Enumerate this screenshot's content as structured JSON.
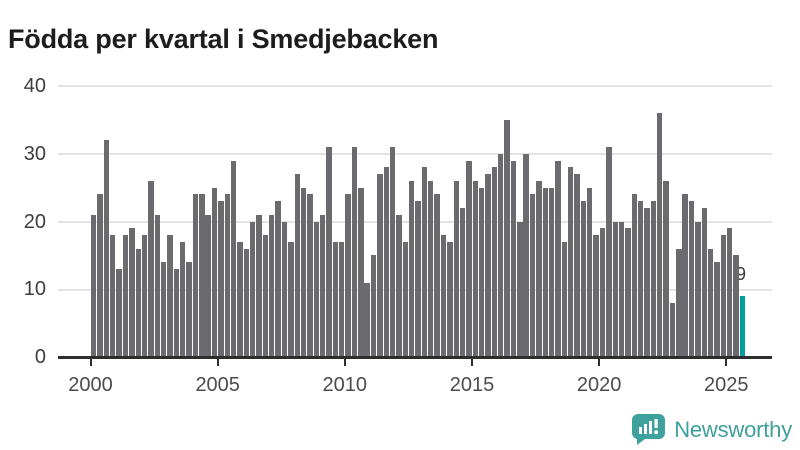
{
  "title": "Födda per kvartal i Smedjebacken",
  "chart_data": {
    "type": "bar",
    "title": "Födda per kvartal i Smedjebacken",
    "x_unit": "quarter",
    "start_quarter": "2000 Q1",
    "end_quarter": "2025 Q3",
    "values": [
      21,
      24,
      32,
      18,
      13,
      18,
      19,
      16,
      18,
      26,
      21,
      14,
      18,
      13,
      17,
      14,
      24,
      24,
      21,
      25,
      23,
      24,
      29,
      17,
      16,
      20,
      21,
      18,
      21,
      23,
      20,
      17,
      27,
      25,
      24,
      20,
      21,
      31,
      17,
      17,
      24,
      31,
      25,
      11,
      15,
      27,
      28,
      31,
      21,
      17,
      26,
      23,
      28,
      26,
      24,
      18,
      17,
      26,
      22,
      29,
      26,
      25,
      27,
      28,
      30,
      35,
      29,
      20,
      30,
      24,
      26,
      25,
      25,
      29,
      17,
      28,
      27,
      23,
      25,
      18,
      19,
      31,
      20,
      20,
      19,
      24,
      23,
      22,
      23,
      36,
      26,
      8,
      16,
      24,
      23,
      20,
      22,
      16,
      14,
      18,
      19,
      15,
      9
    ],
    "x_tick_labels": [
      "2000",
      "2005",
      "2010",
      "2015",
      "2020",
      "2025"
    ],
    "y_ticks": [
      0,
      10,
      20,
      30,
      40
    ],
    "ylim": [
      0,
      40
    ],
    "grid": "horizontal",
    "bar_color": "#6a6a6f",
    "highlight": {
      "index": 102,
      "quarter": "2025 Q3",
      "value": 9,
      "label": "9",
      "color": "#00a0a0"
    }
  },
  "footer": {
    "brand": "Newsworthy"
  },
  "colors": {
    "title": "#1d1d1d",
    "bar": "#6a6a6f",
    "highlight": "#00a0a0",
    "gridline": "#e4e4e4",
    "axis": "#2e2e2e",
    "brand_teal": "#3f9f9c"
  }
}
